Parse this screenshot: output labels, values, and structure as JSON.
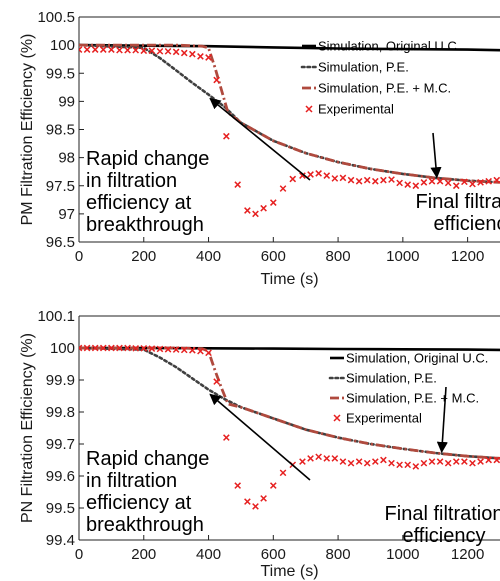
{
  "chart_data": [
    {
      "type": "line",
      "ylabel": "PM Filtration Efficiency (%)",
      "xlabel": "Time (s)",
      "xlim": [
        0,
        1300
      ],
      "ylim": [
        96.5,
        100.5
      ],
      "xticks": [
        "0",
        "200",
        "400",
        "600",
        "800",
        "1000",
        "1200"
      ],
      "xtick_values": [
        0,
        200,
        400,
        600,
        800,
        1000,
        1200
      ],
      "yticks": [
        "96.5",
        "97",
        "97.5",
        "98",
        "98.5",
        "99",
        "99.5",
        "100",
        "100.5"
      ],
      "ytick_values": [
        96.5,
        97,
        97.5,
        98,
        98.5,
        99,
        99.5,
        100,
        100.5
      ],
      "legend_position": "top-right",
      "legend": [
        "Simulation, Original U.C.",
        "Simulation, P.E.",
        "Simulation, P.E. + M.C.",
        "Experimental"
      ],
      "series": [
        {
          "name": "Simulation, Original U.C.",
          "style": "solid",
          "color": "#000000",
          "x": [
            0,
            200,
            400,
            600,
            800,
            1000,
            1200,
            1300
          ],
          "y": [
            100.0,
            99.99,
            99.98,
            99.96,
            99.94,
            99.93,
            99.92,
            99.91
          ]
        },
        {
          "name": "Simulation, P.E.",
          "style": "dotted",
          "color": "#404040",
          "x": [
            0,
            200,
            250,
            300,
            350,
            400,
            450,
            500,
            600,
            700,
            800,
            900,
            1000,
            1100,
            1200,
            1300
          ],
          "y": [
            100.0,
            99.95,
            99.77,
            99.55,
            99.33,
            99.12,
            98.9,
            98.62,
            98.3,
            98.08,
            97.92,
            97.8,
            97.71,
            97.64,
            97.59,
            97.56
          ]
        },
        {
          "name": "Simulation, P.E. + M.C.",
          "style": "dashed",
          "color": "#b04a3e",
          "x": [
            0,
            200,
            300,
            380,
            400,
            420,
            440,
            460,
            500,
            600,
            700,
            800,
            900,
            1000,
            1100,
            1200,
            1300
          ],
          "y": [
            100.0,
            100.0,
            100.0,
            99.98,
            99.95,
            99.6,
            99.2,
            98.8,
            98.62,
            98.3,
            98.08,
            97.92,
            97.8,
            97.71,
            97.64,
            97.59,
            97.56
          ]
        },
        {
          "name": "Experimental",
          "style": "markers",
          "color": "#e62020",
          "x": [
            0,
            25,
            50,
            75,
            100,
            125,
            150,
            175,
            200,
            225,
            250,
            275,
            300,
            325,
            350,
            375,
            400,
            425,
            455,
            490,
            520,
            545,
            570,
            600,
            630,
            660,
            690,
            715,
            740,
            765,
            790,
            815,
            840,
            865,
            890,
            915,
            940,
            965,
            990,
            1015,
            1040,
            1065,
            1090,
            1115,
            1140,
            1165,
            1190,
            1215,
            1240,
            1265,
            1290
          ],
          "y": [
            99.92,
            99.92,
            99.92,
            99.92,
            99.92,
            99.91,
            99.91,
            99.91,
            99.9,
            99.9,
            99.89,
            99.89,
            99.88,
            99.86,
            99.84,
            99.8,
            99.78,
            99.38,
            98.38,
            97.52,
            97.06,
            97.0,
            97.1,
            97.2,
            97.45,
            97.62,
            97.68,
            97.7,
            97.72,
            97.68,
            97.63,
            97.64,
            97.6,
            97.58,
            97.6,
            97.58,
            97.6,
            97.61,
            97.55,
            97.52,
            97.5,
            97.56,
            97.58,
            97.58,
            97.55,
            97.5,
            97.57,
            97.53,
            97.56,
            97.58,
            97.6
          ]
        }
      ],
      "annotations": [
        {
          "text": "Rapid change in filtration efficiency at breakthrough",
          "lines": [
            "Rapid change",
            "in filtration",
            "efficiency at",
            "breakthrough"
          ],
          "arrow_to": [
            405,
            99.05
          ]
        },
        {
          "text": "Final filtration efficiency",
          "lines": [
            "Final filtration",
            "efficiency"
          ],
          "arrow_to": [
            1105,
            97.65
          ]
        }
      ]
    },
    {
      "type": "line",
      "ylabel": "PN Filtration Efficiency (%)",
      "xlabel": "Time (s)",
      "xlim": [
        0,
        1300
      ],
      "ylim": [
        99.4,
        100.1
      ],
      "xticks": [
        "0",
        "200",
        "400",
        "600",
        "800",
        "1000",
        "1200"
      ],
      "xtick_values": [
        0,
        200,
        400,
        600,
        800,
        1000,
        1200
      ],
      "yticks": [
        "99.4",
        "99.5",
        "99.6",
        "99.7",
        "99.8",
        "99.9",
        "100",
        "100.1"
      ],
      "ytick_values": [
        99.4,
        99.5,
        99.6,
        99.7,
        99.8,
        99.9,
        100,
        100.1
      ],
      "legend_position": "top-right",
      "legend": [
        "Simulation, Original U.C.",
        "Simulation, P.E.",
        "Simulation, P.E. + M.C.",
        "Experimental"
      ],
      "series": [
        {
          "name": "Simulation, Original U.C.",
          "style": "solid",
          "color": "#000000",
          "x": [
            0,
            200,
            400,
            600,
            800,
            1000,
            1200,
            1300
          ],
          "y": [
            100.0,
            100.0,
            99.999,
            99.998,
            99.997,
            99.996,
            99.995,
            99.994
          ]
        },
        {
          "name": "Simulation, P.E.",
          "style": "dotted",
          "color": "#404040",
          "x": [
            0,
            200,
            250,
            300,
            350,
            400,
            450,
            500,
            600,
            700,
            800,
            900,
            1000,
            1100,
            1200,
            1300
          ],
          "y": [
            100.0,
            99.995,
            99.97,
            99.94,
            99.905,
            99.87,
            99.84,
            99.815,
            99.78,
            99.745,
            99.72,
            99.7,
            99.685,
            99.672,
            99.662,
            99.655
          ]
        },
        {
          "name": "Simulation, P.E. + M.C.",
          "style": "dashed",
          "color": "#b04a3e",
          "x": [
            0,
            200,
            300,
            380,
            400,
            420,
            440,
            460,
            500,
            600,
            700,
            800,
            900,
            1000,
            1100,
            1200,
            1300
          ],
          "y": [
            100.0,
            100.0,
            100.0,
            99.998,
            99.99,
            99.93,
            99.875,
            99.825,
            99.815,
            99.78,
            99.745,
            99.72,
            99.7,
            99.685,
            99.672,
            99.662,
            99.655
          ]
        },
        {
          "name": "Experimental",
          "style": "markers",
          "color": "#e62020",
          "x": [
            0,
            25,
            50,
            75,
            100,
            125,
            150,
            175,
            200,
            225,
            250,
            275,
            300,
            325,
            350,
            375,
            400,
            425,
            455,
            490,
            520,
            545,
            570,
            600,
            630,
            660,
            690,
            715,
            740,
            765,
            790,
            815,
            840,
            865,
            890,
            915,
            940,
            965,
            990,
            1015,
            1040,
            1065,
            1090,
            1115,
            1140,
            1165,
            1190,
            1215,
            1240,
            1265,
            1290
          ],
          "y": [
            100.0,
            100.0,
            100.0,
            100.0,
            100.0,
            100.0,
            100.0,
            99.999,
            99.999,
            99.998,
            99.997,
            99.996,
            99.995,
            99.994,
            99.993,
            99.99,
            99.985,
            99.895,
            99.72,
            99.57,
            99.52,
            99.505,
            99.53,
            99.57,
            99.61,
            99.635,
            99.645,
            99.655,
            99.66,
            99.655,
            99.655,
            99.645,
            99.64,
            99.645,
            99.64,
            99.645,
            99.65,
            99.64,
            99.635,
            99.635,
            99.63,
            99.64,
            99.645,
            99.645,
            99.64,
            99.645,
            99.645,
            99.64,
            99.645,
            99.65,
            99.65
          ]
        }
      ],
      "annotations": [
        {
          "text": "Rapid change in filtration efficiency at breakthrough",
          "lines": [
            "Rapid change",
            "in filtration",
            "efficiency at",
            "breakthrough"
          ],
          "arrow_to": [
            405,
            99.855
          ]
        },
        {
          "text": "Final filtration efficiency",
          "lines": [
            "Final filtration",
            "efficiency"
          ],
          "arrow_to": [
            1120,
            99.675
          ]
        }
      ]
    }
  ]
}
